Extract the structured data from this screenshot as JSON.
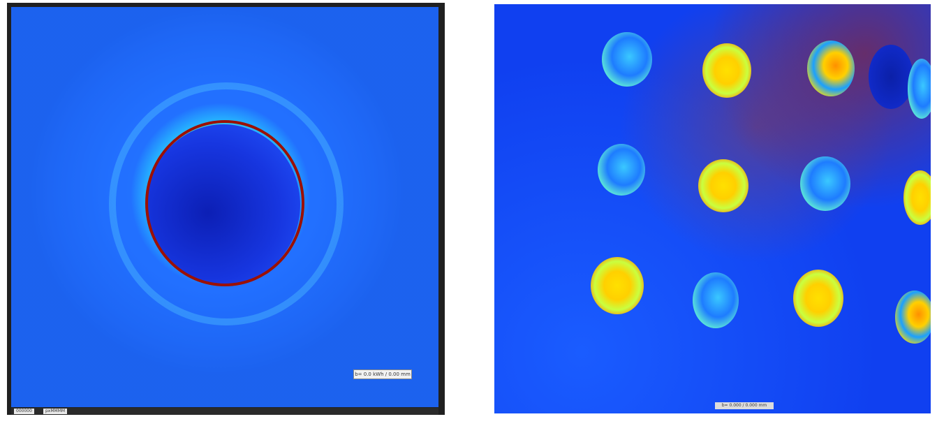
{
  "left_panel": {
    "scale_label": "b= 0.0 kWh / 0.00 mm",
    "footer_tags": [
      "000000",
      "pxMMMM"
    ]
  },
  "right_panel": {
    "scale_label": "b= 0.000 / 0.000 mm"
  }
}
